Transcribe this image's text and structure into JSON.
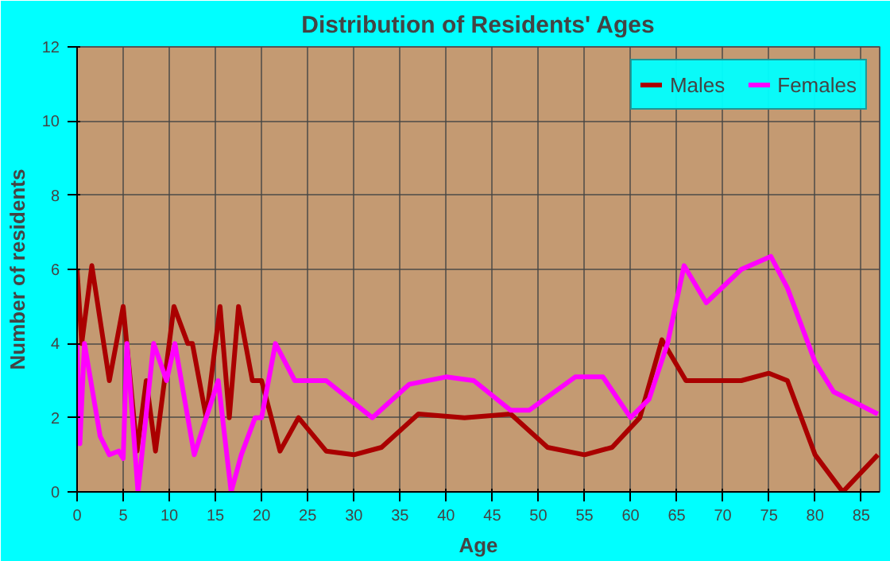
{
  "chart_data": {
    "type": "line",
    "title": "Distribution of Residents' Ages",
    "xlabel": "Age",
    "ylabel": "Number of residents",
    "xlim": [
      0,
      87
    ],
    "ylim": [
      0,
      12
    ],
    "xticks": [
      0,
      5,
      10,
      15,
      20,
      25,
      30,
      35,
      40,
      45,
      50,
      55,
      60,
      65,
      70,
      75,
      80,
      85
    ],
    "yticks": [
      0,
      2,
      4,
      6,
      8,
      10,
      12
    ],
    "grid": true,
    "legend": "top right",
    "marker": "none",
    "line_style": "solid",
    "series": [
      {
        "name": "Males",
        "color": "#aa0000",
        "x": [
          0,
          0.5,
          1.6,
          3.5,
          5,
          6.5,
          7.5,
          8.5,
          10.5,
          12,
          12.5,
          14,
          15.5,
          16.5,
          17.5,
          19,
          20,
          22,
          24,
          27,
          30,
          33,
          37,
          42,
          47,
          51,
          55,
          58,
          61,
          63.4,
          66,
          68,
          72,
          75,
          77,
          80,
          83,
          86.8
        ],
        "values": [
          6,
          4,
          6.1,
          3,
          5,
          1.1,
          3,
          1.1,
          5,
          4,
          4,
          2,
          5,
          2,
          5,
          3,
          3,
          1.1,
          2,
          1.1,
          1,
          1.2,
          2.1,
          2,
          2.1,
          1.2,
          1,
          1.2,
          2,
          4.1,
          3,
          3,
          3,
          3.2,
          3,
          1,
          0,
          1
        ]
      },
      {
        "name": "Females",
        "color": "#ff00ff",
        "x": [
          0,
          0.3,
          0.8,
          2.5,
          3.5,
          4.5,
          5,
          5.4,
          6.6,
          8.3,
          9.7,
          10.6,
          12.7,
          14,
          15.3,
          16.7,
          17.8,
          19.3,
          20,
          21.5,
          23.6,
          27,
          32,
          36,
          40,
          43,
          47,
          49,
          54,
          57,
          60,
          62,
          64,
          65.8,
          68.2,
          72,
          75.2,
          77,
          80,
          82,
          86.8
        ],
        "values": [
          4,
          1.3,
          4,
          1.5,
          1,
          1.1,
          0.9,
          4,
          0,
          4,
          3,
          4,
          1,
          2,
          3,
          0,
          1,
          2,
          2,
          4,
          3,
          3,
          2,
          2.9,
          3.1,
          3,
          2.2,
          2.2,
          3.1,
          3.1,
          2,
          2.5,
          4,
          6.1,
          5.1,
          6,
          6.35,
          5.5,
          3.5,
          2.7,
          2.1
        ]
      }
    ]
  }
}
